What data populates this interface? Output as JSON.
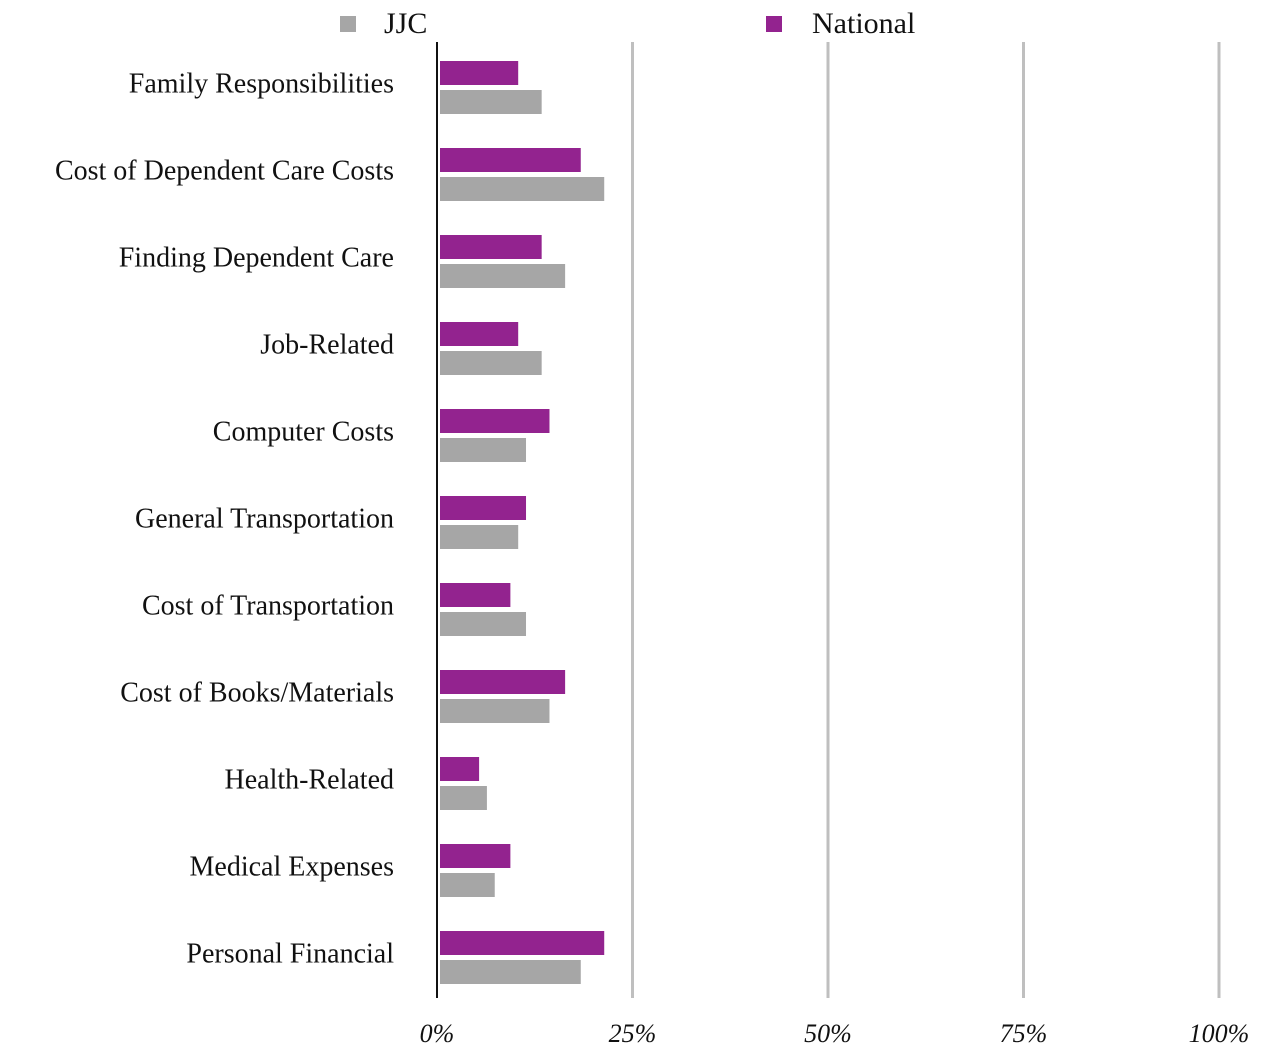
{
  "chart_data": {
    "type": "bar",
    "orientation": "horizontal",
    "categories": [
      "Family Responsibilities",
      "Cost of Dependent Care Costs",
      "Finding Dependent Care",
      "Job-Related",
      "Computer Costs",
      "General Transportation",
      "Cost of Transportation",
      "Cost of Books/Materials",
      "Health-Related",
      "Medical Expenses",
      "Personal Financial"
    ],
    "series": [
      {
        "name": "National",
        "color": "#93238f",
        "values": [
          10,
          18,
          13,
          10,
          14,
          11,
          9,
          16,
          5,
          9,
          21
        ]
      },
      {
        "name": "JJC",
        "color": "#a6a6a6",
        "values": [
          13,
          21,
          16,
          13,
          11,
          10,
          11,
          14,
          6,
          7,
          18
        ]
      }
    ],
    "xlim": [
      0,
      100
    ],
    "x_ticks": [
      0,
      25,
      50,
      75,
      100
    ],
    "x_tick_labels": [
      "0%",
      "25%",
      "50%",
      "75%",
      "100%"
    ],
    "grid": "vertical",
    "grid_color": "#bfbfbf",
    "legend_placement": "top",
    "legend_order": [
      "JJC",
      "National"
    ]
  }
}
